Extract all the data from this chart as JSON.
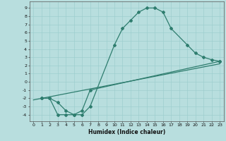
{
  "xlabel": "Humidex (Indice chaleur)",
  "xlim": [
    -0.5,
    23.5
  ],
  "ylim": [
    -4.8,
    9.8
  ],
  "xticks": [
    0,
    1,
    2,
    3,
    4,
    5,
    6,
    7,
    8,
    9,
    10,
    11,
    12,
    13,
    14,
    15,
    16,
    17,
    18,
    19,
    20,
    21,
    22,
    23
  ],
  "yticks": [
    -4,
    -3,
    -2,
    -1,
    0,
    1,
    2,
    3,
    4,
    5,
    6,
    7,
    8,
    9
  ],
  "background_color": "#b8dede",
  "grid_color": "#99cccc",
  "line_color": "#2e7d6e",
  "line1_x": [
    1,
    2,
    3,
    4,
    5,
    6,
    7,
    10,
    11,
    12,
    13,
    14,
    15,
    16,
    17,
    19,
    20,
    21,
    22,
    23
  ],
  "line1_y": [
    -2,
    -2,
    -4,
    -4,
    -4,
    -4,
    -3,
    4.5,
    6.5,
    7.5,
    8.5,
    9,
    9,
    8.5,
    6.5,
    4.5,
    3.5,
    3.0,
    2.7,
    2.5
  ],
  "line2_x": [
    1,
    2,
    3,
    4,
    5,
    6,
    7,
    23
  ],
  "line2_y": [
    -2,
    -2,
    -2.5,
    -3.5,
    -4,
    -3.5,
    -1.0,
    2.5
  ],
  "line3_x": [
    0,
    23
  ],
  "line3_y": [
    -2.2,
    2.2
  ],
  "marker": "D",
  "markersize": 2,
  "linewidth": 0.9,
  "tick_fontsize": 4.5,
  "xlabel_fontsize": 5.5
}
